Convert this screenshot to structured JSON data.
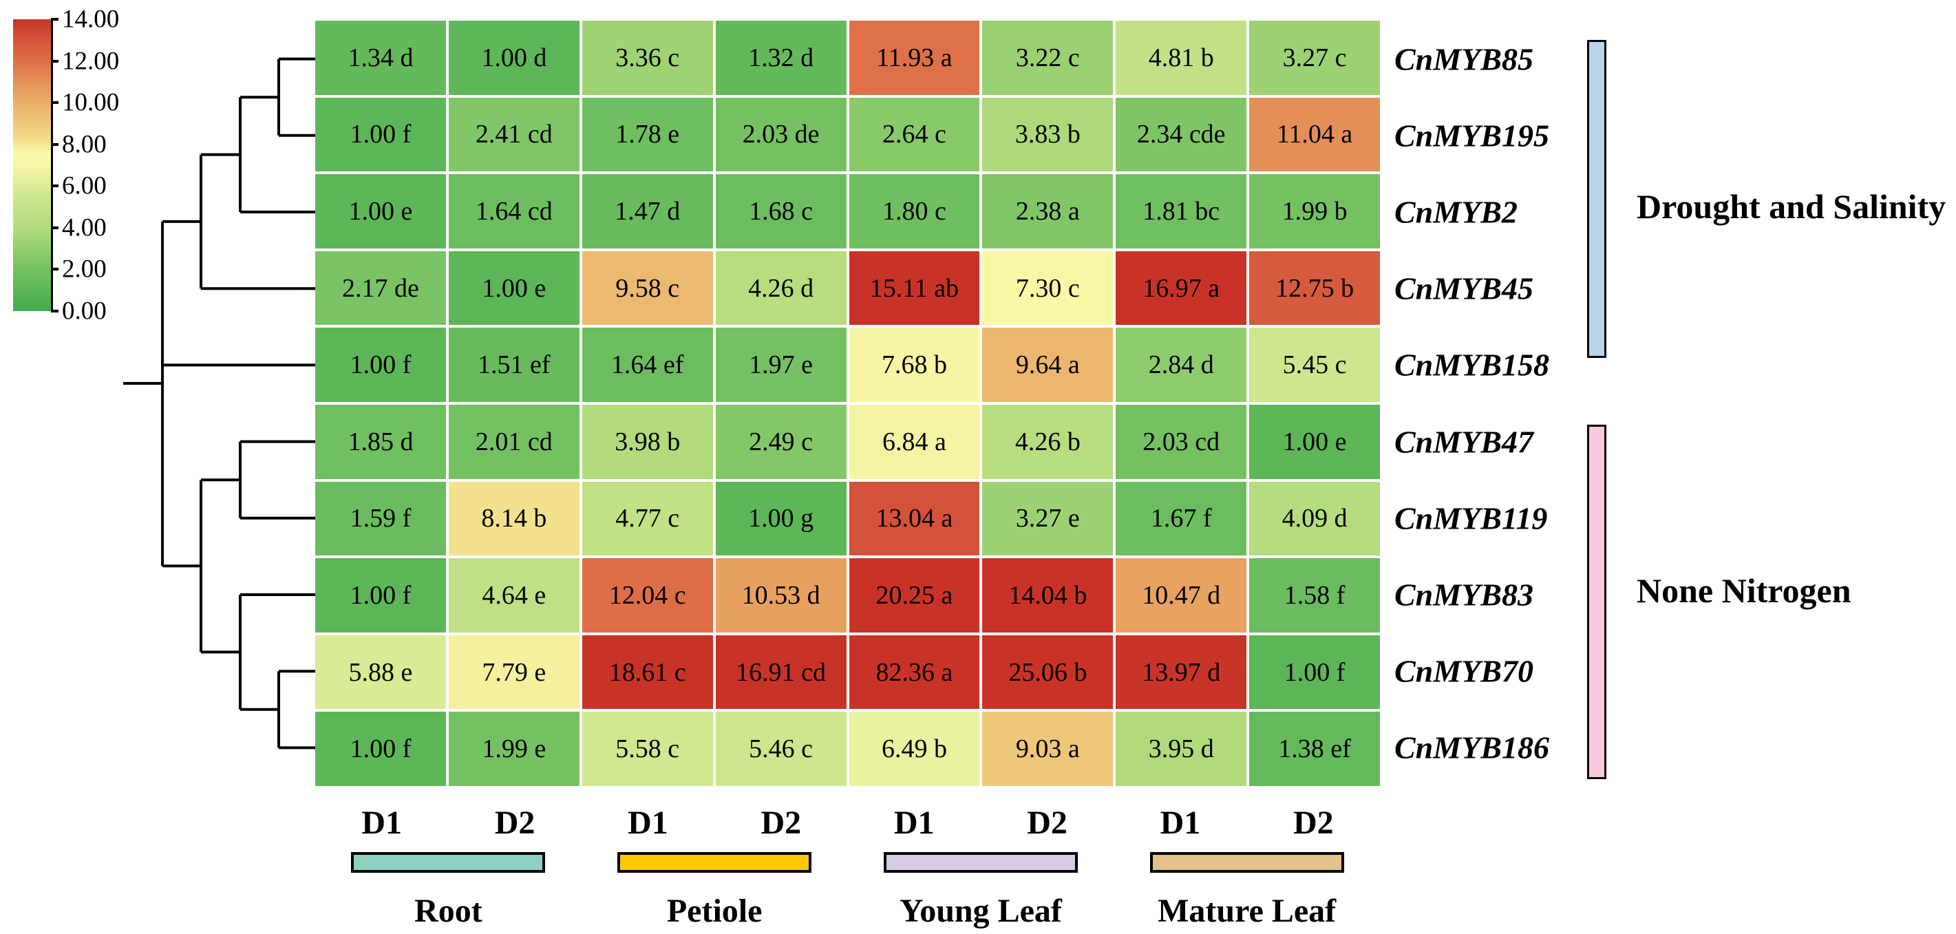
{
  "figure": {
    "background": "#ffffff"
  },
  "colorbar": {
    "min": 0,
    "max": 14,
    "ticks": [
      "14.00",
      "12.00",
      "10.00",
      "8.00",
      "6.00",
      "4.00",
      "2.00",
      "0.00"
    ],
    "stops": [
      [
        0,
        "#45aa4e"
      ],
      [
        2,
        "#74c162"
      ],
      [
        4,
        "#b3db7c"
      ],
      [
        5.5,
        "#cfe78e"
      ],
      [
        7,
        "#f7f7a6"
      ],
      [
        7.6,
        "#f8f8a8"
      ],
      [
        8.2,
        "#f2df8a"
      ],
      [
        9,
        "#eec87a"
      ],
      [
        10.5,
        "#e8a160"
      ],
      [
        12,
        "#dd6f46"
      ],
      [
        13,
        "#d4533a"
      ],
      [
        14,
        "#c93327"
      ]
    ]
  },
  "columns": {
    "replicate_labels": [
      "D1",
      "D2",
      "D1",
      "D2",
      "D1",
      "D2",
      "D1",
      "D2"
    ],
    "tissues": [
      {
        "name": "Root",
        "color": "#8ed1c2"
      },
      {
        "name": "Petiole",
        "color": "#fec806"
      },
      {
        "name": "Young Leaf",
        "color": "#d8cbe4"
      },
      {
        "name": "Mature Leaf",
        "color": "#e4c08c"
      }
    ]
  },
  "groups": [
    {
      "label": "Drought and Salinity",
      "color": "#b9d4e9"
    },
    {
      "label": "None Nitrogen",
      "color": "#fbc9df"
    }
  ],
  "chart_data": {
    "type": "heatmap",
    "title": "",
    "row_labels": [
      "CnMYB85",
      "CnMYB195",
      "CnMYB2",
      "CnMYB45",
      "CnMYB158",
      "CnMYB47",
      "CnMYB119",
      "CnMYB83",
      "CnMYB70",
      "CnMYB186"
    ],
    "col_labels": [
      "Root D1",
      "Root D2",
      "Petiole D1",
      "Petiole D2",
      "Young Leaf D1",
      "Young Leaf D2",
      "Mature Leaf D1",
      "Mature Leaf D2"
    ],
    "values": [
      [
        1.34,
        1.0,
        3.36,
        1.32,
        11.93,
        3.22,
        4.81,
        3.27
      ],
      [
        1.0,
        2.41,
        1.78,
        2.03,
        2.64,
        3.83,
        2.34,
        11.04
      ],
      [
        1.0,
        1.64,
        1.47,
        1.68,
        1.8,
        2.38,
        1.81,
        1.99
      ],
      [
        2.17,
        1.0,
        9.58,
        4.26,
        15.11,
        7.3,
        16.97,
        12.75
      ],
      [
        1.0,
        1.51,
        1.64,
        1.97,
        7.68,
        9.64,
        2.84,
        5.45
      ],
      [
        1.85,
        2.01,
        3.98,
        2.49,
        6.84,
        4.26,
        2.03,
        1.0
      ],
      [
        1.59,
        8.14,
        4.77,
        1.0,
        13.04,
        3.27,
        1.67,
        4.09
      ],
      [
        1.0,
        4.64,
        12.04,
        10.53,
        20.25,
        14.04,
        10.47,
        1.58
      ],
      [
        5.88,
        7.79,
        18.61,
        16.91,
        82.36,
        25.06,
        13.97,
        1.0
      ],
      [
        1.0,
        1.99,
        5.58,
        5.46,
        6.49,
        9.03,
        3.95,
        1.38
      ]
    ],
    "significance_letters": [
      [
        "d",
        "d",
        "c",
        "d",
        "a",
        "c",
        "b",
        "c"
      ],
      [
        "f",
        "cd",
        "e",
        "de",
        "c",
        "b",
        "cde",
        "a"
      ],
      [
        "e",
        "cd",
        "d",
        "c",
        "c",
        "a",
        "bc",
        "b"
      ],
      [
        "de",
        "e",
        "c",
        "d",
        "ab",
        "c",
        "a",
        "b"
      ],
      [
        "f",
        "ef",
        "ef",
        "e",
        "b",
        "a",
        "d",
        "c"
      ],
      [
        "d",
        "cd",
        "b",
        "c",
        "a",
        "b",
        "cd",
        "e"
      ],
      [
        "f",
        "b",
        "c",
        "g",
        "a",
        "e",
        "f",
        "d"
      ],
      [
        "f",
        "e",
        "c",
        "d",
        "a",
        "b",
        "d",
        "f"
      ],
      [
        "e",
        "e",
        "c",
        "cd",
        "a",
        "b",
        "d",
        "f"
      ],
      [
        "f",
        "e",
        "c",
        "c",
        "b",
        "a",
        "d",
        "ef"
      ]
    ],
    "color_scale": {
      "min": 0,
      "max": 14,
      "low_color": "#45aa4e",
      "mid_color": "#f7f7a6",
      "high_color": "#c93327",
      "values_above_max_clamped": true
    },
    "row_groups": [
      {
        "label": "Drought and Salinity",
        "row_start": 0,
        "row_end": 4
      },
      {
        "label": "None Nitrogen",
        "row_start": 5,
        "row_end": 9
      }
    ],
    "legend_position": "top-left",
    "grid": false
  }
}
